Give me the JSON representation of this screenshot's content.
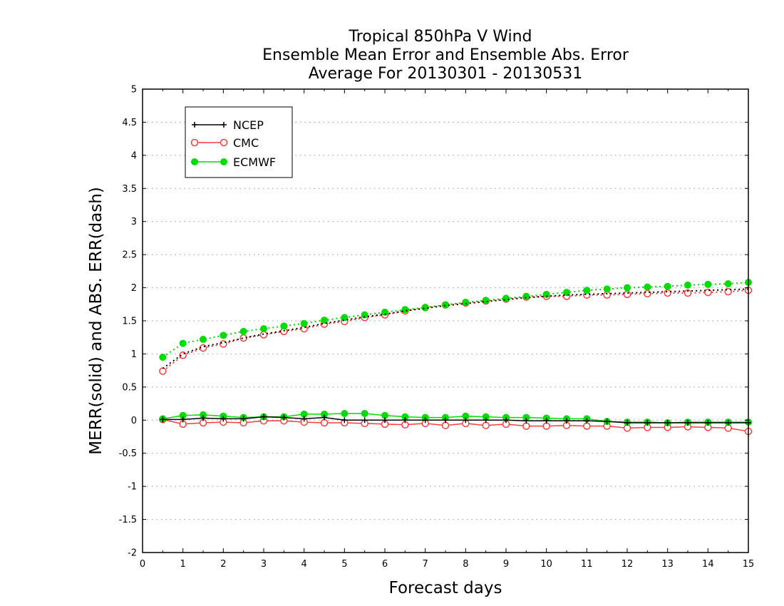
{
  "chart_data": {
    "type": "line",
    "title": [
      "Tropical 850hPa V Wind",
      "Ensemble Mean Error and Ensemble Abs. Error",
      "Average For 20130301 - 20130531"
    ],
    "xlabel": "Forecast days",
    "ylabel": "MERR(solid) and ABS. ERR(dash)",
    "xlim": [
      0,
      15
    ],
    "ylim": [
      -2,
      5
    ],
    "xticks": [
      "0",
      "1",
      "2",
      "3",
      "4",
      "5",
      "6",
      "7",
      "8",
      "9",
      "10",
      "11",
      "12",
      "13",
      "14",
      "15"
    ],
    "yticks": [
      "5",
      "4.5",
      "4",
      "3.5",
      "3",
      "2.5",
      "2",
      "1.5",
      "1",
      "0.5",
      "0",
      "-0.5",
      "-1",
      "-1.5",
      "-2"
    ],
    "ytick_values": [
      5,
      4.5,
      4,
      3.5,
      3,
      2.5,
      2,
      1.5,
      1,
      0.5,
      0,
      -0.5,
      -1,
      -1.5,
      -2
    ],
    "grid": "horizontal dotted",
    "legend_position": "top-left",
    "x": [
      0.5,
      1,
      1.5,
      2,
      2.5,
      3,
      3.5,
      4,
      4.5,
      5,
      5.5,
      6,
      6.5,
      7,
      7.5,
      8,
      8.5,
      9,
      9.5,
      10,
      10.5,
      11,
      11.5,
      12,
      12.5,
      13,
      13.5,
      14,
      14.5,
      15
    ],
    "series": [
      {
        "name": "NCEP",
        "color": "#000000",
        "marker": "plus",
        "merr": [
          0.01,
          0.01,
          0.03,
          0.02,
          0.02,
          0.05,
          0.04,
          0.02,
          0.04,
          0.0,
          0.0,
          0.0,
          0.0,
          0.0,
          0.0,
          0.0,
          0.0,
          0.0,
          -0.01,
          -0.01,
          -0.01,
          -0.01,
          -0.02,
          -0.04,
          -0.04,
          -0.04,
          -0.04,
          -0.04,
          -0.04,
          -0.04
        ],
        "abs_err": [
          0.78,
          1.0,
          1.11,
          1.17,
          1.24,
          1.3,
          1.35,
          1.4,
          1.46,
          1.51,
          1.56,
          1.6,
          1.65,
          1.69,
          1.73,
          1.76,
          1.79,
          1.82,
          1.85,
          1.87,
          1.89,
          1.9,
          1.91,
          1.92,
          1.93,
          1.94,
          1.95,
          1.96,
          1.97,
          1.98
        ]
      },
      {
        "name": "CMC",
        "color": "#ff3b3b",
        "marker": "open-circle",
        "merr": [
          0.01,
          -0.06,
          -0.04,
          -0.03,
          -0.04,
          -0.01,
          -0.01,
          -0.03,
          -0.04,
          -0.04,
          -0.05,
          -0.06,
          -0.07,
          -0.05,
          -0.08,
          -0.05,
          -0.08,
          -0.06,
          -0.09,
          -0.09,
          -0.08,
          -0.09,
          -0.09,
          -0.12,
          -0.11,
          -0.11,
          -0.1,
          -0.11,
          -0.12,
          -0.17
        ],
        "abs_err": [
          0.74,
          0.98,
          1.09,
          1.15,
          1.24,
          1.29,
          1.34,
          1.38,
          1.45,
          1.49,
          1.55,
          1.59,
          1.65,
          1.7,
          1.74,
          1.77,
          1.8,
          1.83,
          1.86,
          1.87,
          1.87,
          1.89,
          1.89,
          1.9,
          1.91,
          1.92,
          1.92,
          1.93,
          1.94,
          1.96
        ]
      },
      {
        "name": "ECMWF",
        "color": "#00dd00",
        "marker": "filled-circle",
        "merr": [
          0.02,
          0.07,
          0.08,
          0.06,
          0.04,
          0.05,
          0.05,
          0.09,
          0.09,
          0.1,
          0.1,
          0.07,
          0.05,
          0.04,
          0.04,
          0.06,
          0.05,
          0.04,
          0.04,
          0.03,
          0.02,
          0.02,
          -0.02,
          -0.03,
          -0.03,
          -0.04,
          -0.03,
          -0.03,
          -0.03,
          -0.03
        ],
        "abs_err": [
          0.95,
          1.16,
          1.22,
          1.28,
          1.34,
          1.38,
          1.42,
          1.46,
          1.51,
          1.55,
          1.59,
          1.63,
          1.67,
          1.7,
          1.74,
          1.78,
          1.81,
          1.84,
          1.87,
          1.9,
          1.93,
          1.96,
          1.98,
          2.0,
          2.01,
          2.02,
          2.04,
          2.05,
          2.06,
          2.08
        ]
      }
    ]
  }
}
